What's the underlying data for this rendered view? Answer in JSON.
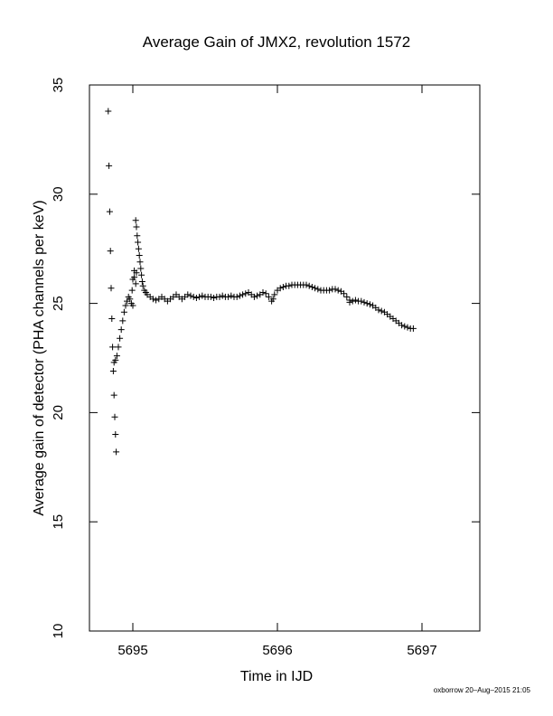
{
  "chart_data": {
    "type": "scatter",
    "title": "Average Gain of JMX2, revolution 1572",
    "xlabel": "Time in IJD",
    "ylabel": "Average gain of detector (PHA channels per keV)",
    "xlim": [
      5694.7,
      5697.4
    ],
    "ylim": [
      10,
      35
    ],
    "xticks": [
      5695,
      5696,
      5697
    ],
    "yticks": [
      10,
      15,
      20,
      25,
      30,
      35
    ],
    "grid": false,
    "legend": "none",
    "marker": "plus",
    "color": "#000000",
    "series": [
      {
        "points": [
          [
            5694.83,
            33.8
          ],
          [
            5694.835,
            31.3
          ],
          [
            5694.84,
            29.2
          ],
          [
            5694.845,
            27.4
          ],
          [
            5694.85,
            25.7
          ],
          [
            5694.855,
            24.3
          ],
          [
            5694.86,
            23.0
          ],
          [
            5694.865,
            21.9
          ],
          [
            5694.87,
            20.8
          ],
          [
            5694.875,
            19.8
          ],
          [
            5694.88,
            19.0
          ],
          [
            5694.885,
            18.2
          ],
          [
            5694.87,
            22.3
          ],
          [
            5694.88,
            22.4
          ],
          [
            5694.89,
            22.6
          ],
          [
            5694.9,
            23.0
          ],
          [
            5694.91,
            23.4
          ],
          [
            5694.92,
            23.8
          ],
          [
            5694.93,
            24.2
          ],
          [
            5694.94,
            24.6
          ],
          [
            5694.95,
            24.9
          ],
          [
            5694.96,
            25.1
          ],
          [
            5694.97,
            25.3
          ],
          [
            5694.98,
            25.2
          ],
          [
            5694.99,
            25.0
          ],
          [
            5695.0,
            24.9
          ],
          [
            5694.995,
            25.6
          ],
          [
            5695.0,
            26.1
          ],
          [
            5695.01,
            26.5
          ],
          [
            5695.01,
            26.2
          ],
          [
            5695.02,
            25.9
          ],
          [
            5695.025,
            26.4
          ],
          [
            5695.02,
            28.8
          ],
          [
            5695.025,
            28.5
          ],
          [
            5695.03,
            28.1
          ],
          [
            5695.035,
            27.8
          ],
          [
            5695.04,
            27.5
          ],
          [
            5695.045,
            27.2
          ],
          [
            5695.05,
            26.9
          ],
          [
            5695.055,
            26.6
          ],
          [
            5695.06,
            26.3
          ],
          [
            5695.065,
            26.0
          ],
          [
            5695.07,
            25.8
          ],
          [
            5695.08,
            25.6
          ],
          [
            5695.09,
            25.5
          ],
          [
            5695.1,
            25.4
          ],
          [
            5695.12,
            25.3
          ],
          [
            5695.14,
            25.2
          ],
          [
            5695.16,
            25.15
          ],
          [
            5695.18,
            25.2
          ],
          [
            5695.2,
            25.3
          ],
          [
            5695.22,
            25.2
          ],
          [
            5695.24,
            25.1
          ],
          [
            5695.26,
            25.2
          ],
          [
            5695.28,
            25.3
          ],
          [
            5695.3,
            25.4
          ],
          [
            5695.32,
            25.3
          ],
          [
            5695.34,
            25.2
          ],
          [
            5695.36,
            25.3
          ],
          [
            5695.38,
            25.4
          ],
          [
            5695.4,
            25.35
          ],
          [
            5695.42,
            25.3
          ],
          [
            5695.44,
            25.25
          ],
          [
            5695.46,
            25.3
          ],
          [
            5695.48,
            25.35
          ],
          [
            5695.5,
            25.3
          ],
          [
            5695.52,
            25.3
          ],
          [
            5695.54,
            25.3
          ],
          [
            5695.56,
            25.25
          ],
          [
            5695.58,
            25.3
          ],
          [
            5695.6,
            25.3
          ],
          [
            5695.62,
            25.35
          ],
          [
            5695.64,
            25.3
          ],
          [
            5695.66,
            25.3
          ],
          [
            5695.68,
            25.35
          ],
          [
            5695.7,
            25.3
          ],
          [
            5695.72,
            25.3
          ],
          [
            5695.74,
            25.35
          ],
          [
            5695.76,
            25.4
          ],
          [
            5695.78,
            25.45
          ],
          [
            5695.8,
            25.5
          ],
          [
            5695.82,
            25.4
          ],
          [
            5695.84,
            25.3
          ],
          [
            5695.86,
            25.35
          ],
          [
            5695.88,
            25.4
          ],
          [
            5695.9,
            25.5
          ],
          [
            5695.92,
            25.45
          ],
          [
            5695.94,
            25.3
          ],
          [
            5695.96,
            25.1
          ],
          [
            5695.97,
            25.2
          ],
          [
            5695.98,
            25.4
          ],
          [
            5696.0,
            25.6
          ],
          [
            5696.02,
            25.7
          ],
          [
            5696.04,
            25.75
          ],
          [
            5696.06,
            25.8
          ],
          [
            5696.08,
            25.8
          ],
          [
            5696.1,
            25.85
          ],
          [
            5696.12,
            25.85
          ],
          [
            5696.14,
            25.85
          ],
          [
            5696.16,
            25.85
          ],
          [
            5696.18,
            25.85
          ],
          [
            5696.2,
            25.85
          ],
          [
            5696.22,
            25.8
          ],
          [
            5696.24,
            25.75
          ],
          [
            5696.26,
            25.7
          ],
          [
            5696.28,
            25.65
          ],
          [
            5696.3,
            25.6
          ],
          [
            5696.32,
            25.6
          ],
          [
            5696.34,
            25.6
          ],
          [
            5696.36,
            25.6
          ],
          [
            5696.38,
            25.65
          ],
          [
            5696.4,
            25.65
          ],
          [
            5696.42,
            25.6
          ],
          [
            5696.44,
            25.55
          ],
          [
            5696.46,
            25.45
          ],
          [
            5696.48,
            25.3
          ],
          [
            5696.5,
            25.15
          ],
          [
            5696.5,
            25.05
          ],
          [
            5696.52,
            25.1
          ],
          [
            5696.54,
            25.15
          ],
          [
            5696.56,
            25.1
          ],
          [
            5696.58,
            25.1
          ],
          [
            5696.6,
            25.05
          ],
          [
            5696.62,
            25.0
          ],
          [
            5696.64,
            24.95
          ],
          [
            5696.66,
            24.9
          ],
          [
            5696.68,
            24.8
          ],
          [
            5696.7,
            24.7
          ],
          [
            5696.72,
            24.65
          ],
          [
            5696.74,
            24.6
          ],
          [
            5696.76,
            24.5
          ],
          [
            5696.78,
            24.4
          ],
          [
            5696.8,
            24.3
          ],
          [
            5696.82,
            24.2
          ],
          [
            5696.84,
            24.1
          ],
          [
            5696.86,
            24.0
          ],
          [
            5696.88,
            23.95
          ],
          [
            5696.9,
            23.9
          ],
          [
            5696.92,
            23.85
          ],
          [
            5696.94,
            23.85
          ]
        ]
      }
    ]
  },
  "footer": "oxborrow 20–Aug–2015 21:05"
}
